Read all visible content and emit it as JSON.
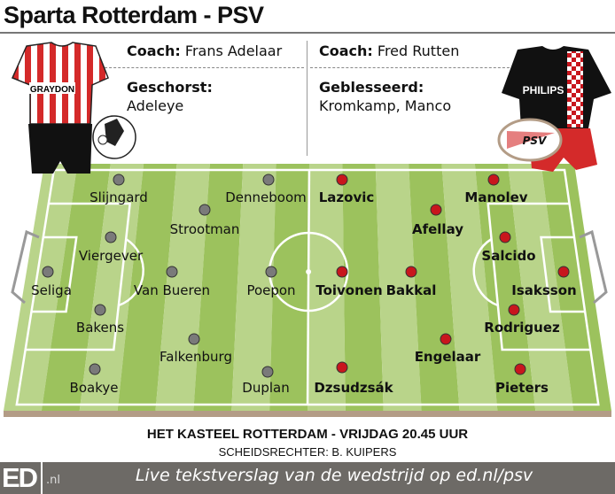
{
  "title": "Sparta Rotterdam - PSV",
  "home": {
    "coach_label": "Coach:",
    "coach": "Frans Adelaar",
    "absent_label": "Geschorst:",
    "absent": "Adeleye",
    "kit_sponsor": "GRAYDON",
    "badge_text": "SPARTA ROTTERDAM",
    "dot_color": "#7a7a7a",
    "players": [
      "Slijngard",
      "Denneboom",
      "Strootman",
      "Viergever",
      "Seliga",
      "Van Bueren",
      "Poepon",
      "Bakens",
      "Falkenburg",
      "Boakye",
      "Duplan"
    ]
  },
  "away": {
    "coach_label": "Coach:",
    "coach": "Fred Rutten",
    "absent_label": "Geblesseerd:",
    "absent": "Kromkamp, Manco",
    "kit_sponsor": "PHILIPS",
    "badge_text": "PSV",
    "dot_color": "#c8161d",
    "players": [
      "Lazovic",
      "Manolev",
      "Afellay",
      "Salcido",
      "Toivonen",
      "Bakkal",
      "Isaksson",
      "Rodriguez",
      "Engelaar",
      "Dzsudzsák",
      "Pieters"
    ]
  },
  "colors": {
    "grass_light": "#b9d48a",
    "grass_dark": "#9cc25d",
    "pitch_base": "#b39c86",
    "bar": "#6d6a66"
  },
  "footer": {
    "venue": "HET KASTEEL ROTTERDAM - VRIJDAG 20.45 UUR",
    "referee": "SCHEIDSRECHTER: B. KUIPERS",
    "logo": "ED",
    "logo_suffix": ".nl",
    "live": "Live tekstverslag van de wedstrijd op ed.nl/psv"
  }
}
